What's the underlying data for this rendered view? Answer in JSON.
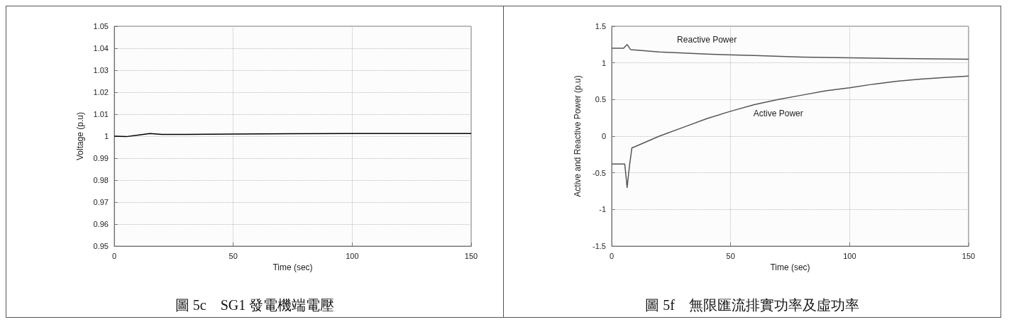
{
  "chart_data": [
    {
      "type": "line",
      "title": "圖 5c　SG1 發電機端電壓",
      "xlabel": "Time (sec)",
      "ylabel": "Voltage (p.u)",
      "xlim": [
        0,
        150
      ],
      "xticks": [
        0,
        50,
        100,
        150
      ],
      "ylim": [
        0.95,
        1.05
      ],
      "yticks": [
        0.95,
        0.96,
        0.97,
        0.98,
        0.99,
        1,
        1.01,
        1.02,
        1.03,
        1.04,
        1.05
      ],
      "grid": true,
      "legend": false,
      "series": [
        {
          "color": "#000000",
          "x": [
            0,
            5,
            10,
            15,
            20,
            30,
            50,
            75,
            100,
            125,
            150
          ],
          "values": [
            1.0,
            0.9998,
            1.0005,
            1.0012,
            1.0008,
            1.0008,
            1.001,
            1.0011,
            1.0012,
            1.0012,
            1.0012
          ]
        }
      ]
    },
    {
      "type": "line",
      "title": "圖 5f　無限匯流排實功率及虛功率",
      "xlabel": "Time (sec)",
      "ylabel": "Active and Reactive Power (p.u)",
      "xlim": [
        0,
        150
      ],
      "xticks": [
        0,
        50,
        100,
        150
      ],
      "ylim": [
        -1.5,
        1.5
      ],
      "yticks": [
        -1.5,
        -1,
        -0.5,
        0,
        0.5,
        1,
        1.5
      ],
      "grid": true,
      "legend": false,
      "series": [
        {
          "name": "Reactive Power",
          "color": "#555555",
          "x": [
            0,
            5,
            6.5,
            8,
            20,
            40,
            60,
            80,
            100,
            120,
            150
          ],
          "values": [
            1.2,
            1.2,
            1.25,
            1.18,
            1.15,
            1.12,
            1.1,
            1.08,
            1.07,
            1.06,
            1.05
          ]
        },
        {
          "name": "Active Power",
          "color": "#555555",
          "x": [
            0,
            5.5,
            6.5,
            7.5,
            8.5,
            10,
            20,
            30,
            40,
            50,
            60,
            70,
            80,
            90,
            100,
            110,
            120,
            130,
            140,
            150
          ],
          "values": [
            -0.38,
            -0.38,
            -0.7,
            -0.4,
            -0.16,
            -0.14,
            0,
            0.12,
            0.24,
            0.34,
            0.43,
            0.5,
            0.56,
            0.62,
            0.66,
            0.71,
            0.75,
            0.78,
            0.8,
            0.82
          ]
        }
      ]
    }
  ]
}
